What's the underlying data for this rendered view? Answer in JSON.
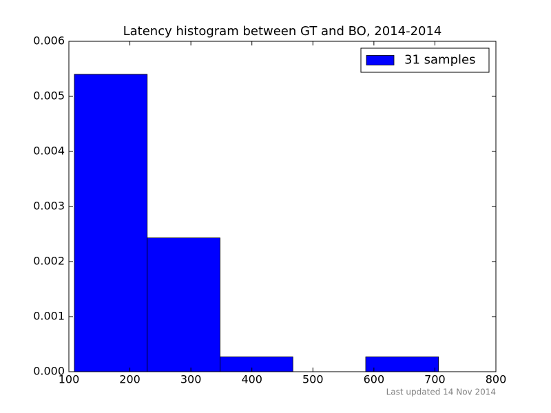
{
  "chart_data": {
    "type": "histogram",
    "title": "Latency histogram between GT and BO, 2014-2014",
    "bins": [
      109,
      228.4,
      347.8,
      467.2,
      586.6,
      706
    ],
    "series": [
      {
        "name": "31 samples",
        "color": "#0000ff",
        "values": [
          0.0054,
          0.00243,
          0.00027,
          0,
          0.00027
        ]
      }
    ],
    "xlim": [
      100,
      800
    ],
    "xticks": [
      100,
      200,
      300,
      400,
      500,
      600,
      700,
      800
    ],
    "ylim": [
      0,
      0.006
    ],
    "yticks": [
      {
        "value": 0,
        "label": "0.000"
      },
      {
        "value": 0.001,
        "label": "0.001"
      },
      {
        "value": 0.002,
        "label": "0.002"
      },
      {
        "value": 0.003,
        "label": "0.003"
      },
      {
        "value": 0.004,
        "label": "0.004"
      },
      {
        "value": 0.005,
        "label": "0.005"
      },
      {
        "value": 0.006,
        "label": "0.006"
      }
    ],
    "legend": "upper right",
    "footnote": "Last updated 14 Nov 2014"
  }
}
